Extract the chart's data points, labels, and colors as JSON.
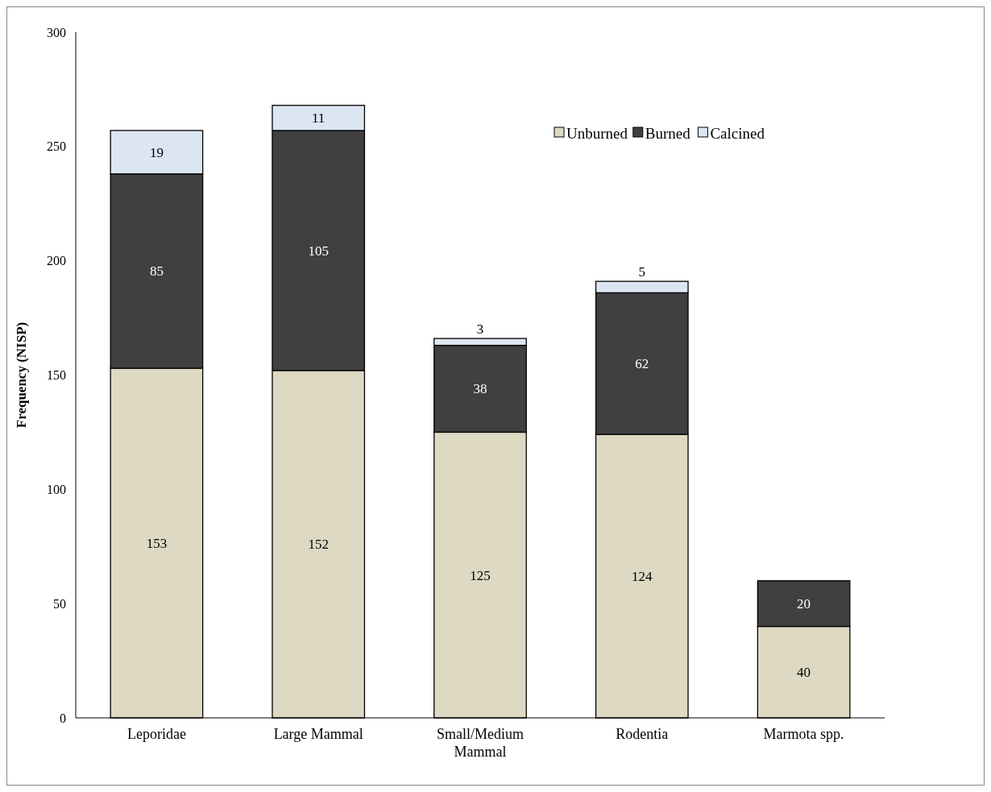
{
  "chart_data": {
    "type": "bar",
    "stacked": true,
    "ylabel": "Frequency (NISP)",
    "categories": [
      "Leporidae",
      "Large Mammal",
      "Small/Medium Mammal",
      "Rodentia",
      "Marmota spp."
    ],
    "series": [
      {
        "name": "Unburned",
        "color": "#ddd9c3",
        "values": [
          153,
          152,
          125,
          124,
          40
        ]
      },
      {
        "name": "Burned",
        "color": "#404040",
        "values": [
          85,
          105,
          38,
          62,
          20
        ]
      },
      {
        "name": "Calcined",
        "color": "#dce6f2",
        "values": [
          19,
          11,
          3,
          5,
          null
        ]
      }
    ],
    "ylim": [
      0,
      300
    ],
    "yticks": [
      0,
      50,
      100,
      150,
      200,
      250,
      300
    ],
    "data_labels": true,
    "legend": "top right",
    "grid": false
  }
}
